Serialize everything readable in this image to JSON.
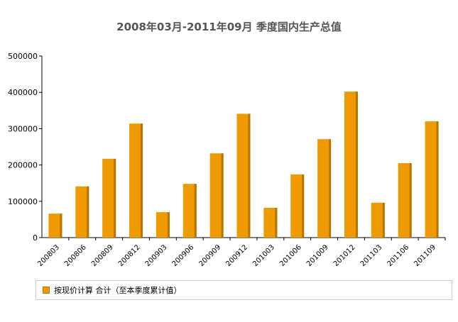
{
  "chart_data": {
    "type": "bar",
    "title": "2008年03月-2011年09月 季度国内生产总值",
    "categories": [
      "200803",
      "200806",
      "200809",
      "200812",
      "200903",
      "200906",
      "200909",
      "200912",
      "201003",
      "201006",
      "201009",
      "201012",
      "201103",
      "201106",
      "201109"
    ],
    "series": [
      {
        "name": "按现价计算 合计（至本季度累计值）",
        "values": [
          66000,
          141000,
          217000,
          314000,
          70000,
          148000,
          232000,
          341000,
          82000,
          174000,
          271000,
          402000,
          96000,
          205000,
          320000
        ]
      }
    ],
    "ylim": [
      0,
      500000
    ],
    "yticks": [
      "0",
      "100000",
      "200000",
      "300000",
      "400000",
      "500000"
    ],
    "xlabel": "",
    "ylabel": "",
    "legend_position": "bottom",
    "bar_color": "#ee9a00"
  }
}
